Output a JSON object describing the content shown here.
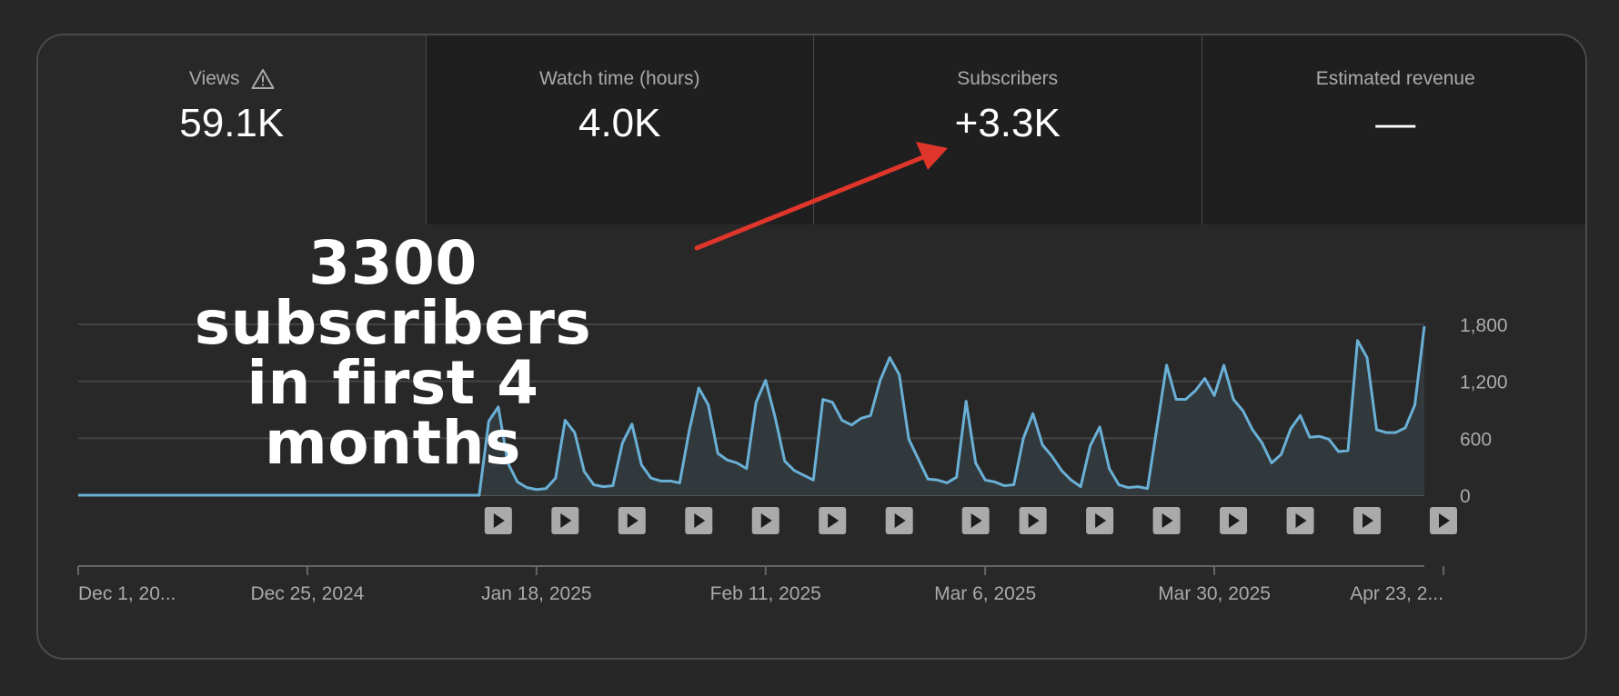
{
  "metrics": [
    {
      "label": "Views",
      "value": "59.1K",
      "icon": "warning-icon"
    },
    {
      "label": "Watch time (hours)",
      "value": "4.0K"
    },
    {
      "label": "Subscribers",
      "value": "+3.3K"
    },
    {
      "label": "Estimated revenue",
      "value": "—"
    }
  ],
  "annotation": {
    "line1": "3300 subscribers",
    "line2": "in first 4 months"
  },
  "colors": {
    "line": "#6ab0d6",
    "fill": "#31393d",
    "arrow": "#e0352b",
    "grid": "#444444"
  },
  "chart_data": {
    "type": "area",
    "y_ticks": [
      "1,800",
      "1,200",
      "600",
      "0"
    ],
    "y_tick_values": [
      1800,
      1200,
      600,
      0
    ],
    "ylim": [
      0,
      1800
    ],
    "x_tick_labels": [
      "Dec 1, 20...",
      "Dec 25, 2024",
      "Jan 18, 2025",
      "Feb 11, 2025",
      "Mar 6, 2025",
      "Mar 30, 2025",
      "Apr 23, 2..."
    ],
    "x_tick_indices": [
      0,
      24,
      48,
      72,
      95,
      119,
      143
    ],
    "video_markers": [
      44,
      51,
      58,
      65,
      72,
      79,
      86,
      94,
      100,
      107,
      114,
      121,
      128,
      135,
      143
    ],
    "values": [
      0,
      0,
      0,
      0,
      0,
      0,
      0,
      0,
      0,
      0,
      0,
      0,
      0,
      0,
      0,
      0,
      0,
      0,
      0,
      0,
      0,
      0,
      0,
      0,
      0,
      0,
      0,
      0,
      0,
      0,
      0,
      0,
      0,
      0,
      0,
      0,
      0,
      0,
      0,
      0,
      0,
      0,
      0,
      780,
      930,
      340,
      140,
      80,
      60,
      70,
      180,
      790,
      660,
      250,
      110,
      90,
      100,
      550,
      750,
      320,
      180,
      150,
      150,
      130,
      680,
      1130,
      950,
      440,
      370,
      340,
      280,
      980,
      1210,
      820,
      360,
      260,
      210,
      160,
      1010,
      980,
      790,
      740,
      810,
      840,
      1210,
      1450,
      1270,
      590,
      380,
      170,
      160,
      130,
      190,
      990,
      340,
      160,
      140,
      100,
      110,
      600,
      860,
      530,
      410,
      260,
      160,
      90,
      520,
      720,
      280,
      110,
      80,
      90,
      70,
      720,
      1370,
      1010,
      1010,
      1100,
      1230,
      1050,
      1370,
      1010,
      890,
      690,
      550,
      340,
      430,
      700,
      840,
      610,
      620,
      590,
      460,
      470,
      1630,
      1450,
      690,
      660,
      660,
      710,
      950,
      1780
    ]
  }
}
